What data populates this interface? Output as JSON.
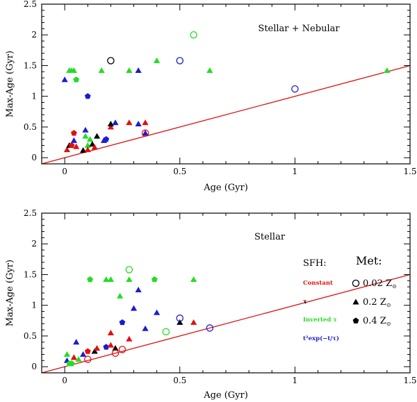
{
  "chart_data": [
    {
      "type": "scatter",
      "title": "Stellar + Nebular",
      "xlabel": "Age (Gyr)",
      "ylabel": "Max-Age (Gyr)",
      "xlim": [
        -0.1,
        1.5
      ],
      "ylim": [
        -0.1,
        2.5
      ],
      "xticks": [
        "0",
        "0.5",
        "1",
        "1.5"
      ],
      "yticks": [
        "0",
        "0.5",
        "1",
        "1.5",
        "2",
        "2.5"
      ],
      "one_to_one_line": true,
      "points": [
        {
          "x": 0.0,
          "y": 1.27,
          "color": "#1c1cd0",
          "marker": "triangle"
        },
        {
          "x": 0.02,
          "y": 1.42,
          "color": "#22dd22",
          "marker": "triangle"
        },
        {
          "x": 0.03,
          "y": 1.42,
          "color": "#22dd22",
          "marker": "triangle"
        },
        {
          "x": 0.04,
          "y": 1.42,
          "color": "#22dd22",
          "marker": "triangle"
        },
        {
          "x": 0.05,
          "y": 1.27,
          "color": "#22dd22",
          "marker": "pentagon"
        },
        {
          "x": 0.1,
          "y": 1.0,
          "color": "#1c1cd0",
          "marker": "pentagon"
        },
        {
          "x": 0.16,
          "y": 1.42,
          "color": "#22dd22",
          "marker": "triangle"
        },
        {
          "x": 0.2,
          "y": 1.58,
          "color": "#000000",
          "marker": "circle"
        },
        {
          "x": 0.28,
          "y": 1.42,
          "color": "#22dd22",
          "marker": "triangle"
        },
        {
          "x": 0.32,
          "y": 1.42,
          "color": "#1c1cd0",
          "marker": "triangle"
        },
        {
          "x": 0.4,
          "y": 1.58,
          "color": "#22dd22",
          "marker": "triangle"
        },
        {
          "x": 0.5,
          "y": 1.58,
          "color": "#1c1cd0",
          "marker": "circle"
        },
        {
          "x": 0.56,
          "y": 2.0,
          "color": "#22dd22",
          "marker": "circle"
        },
        {
          "x": 0.63,
          "y": 1.42,
          "color": "#22dd22",
          "marker": "triangle"
        },
        {
          "x": 1.0,
          "y": 1.12,
          "color": "#1c1cd0",
          "marker": "circle"
        },
        {
          "x": 1.4,
          "y": 1.42,
          "color": "#22dd22",
          "marker": "triangle"
        },
        {
          "x": 0.01,
          "y": 0.13,
          "color": "#e01010",
          "marker": "triangle"
        },
        {
          "x": 0.02,
          "y": 0.2,
          "color": "#000000",
          "marker": "triangle"
        },
        {
          "x": 0.03,
          "y": 0.2,
          "color": "#e01010",
          "marker": "pentagon"
        },
        {
          "x": 0.04,
          "y": 0.4,
          "color": "#e01010",
          "marker": "pentagon"
        },
        {
          "x": 0.04,
          "y": 0.28,
          "color": "#1c1cd0",
          "marker": "triangle"
        },
        {
          "x": 0.05,
          "y": 0.18,
          "color": "#e01010",
          "marker": "triangle"
        },
        {
          "x": 0.08,
          "y": 0.12,
          "color": "#000000",
          "marker": "triangle"
        },
        {
          "x": 0.09,
          "y": 0.45,
          "color": "#1c1cd0",
          "marker": "triangle"
        },
        {
          "x": 0.09,
          "y": 0.35,
          "color": "#22dd22",
          "marker": "triangle"
        },
        {
          "x": 0.1,
          "y": 0.2,
          "color": "#22dd22",
          "marker": "triangle"
        },
        {
          "x": 0.11,
          "y": 0.3,
          "color": "#22dd22",
          "marker": "triangle"
        },
        {
          "x": 0.1,
          "y": 0.13,
          "color": "#e01010",
          "marker": "triangle"
        },
        {
          "x": 0.12,
          "y": 0.22,
          "color": "#000000",
          "marker": "triangle"
        },
        {
          "x": 0.13,
          "y": 0.17,
          "color": "#e01010",
          "marker": "triangle"
        },
        {
          "x": 0.14,
          "y": 0.35,
          "color": "#000000",
          "marker": "triangle"
        },
        {
          "x": 0.17,
          "y": 0.28,
          "color": "#1c1cd0",
          "marker": "triangle"
        },
        {
          "x": 0.18,
          "y": 0.3,
          "color": "#1c1cd0",
          "marker": "pentagon"
        },
        {
          "x": 0.2,
          "y": 0.5,
          "color": "#e01010",
          "marker": "triangle"
        },
        {
          "x": 0.2,
          "y": 0.55,
          "color": "#000000",
          "marker": "triangle"
        },
        {
          "x": 0.22,
          "y": 0.57,
          "color": "#1c1cd0",
          "marker": "triangle"
        },
        {
          "x": 0.28,
          "y": 0.57,
          "color": "#e01010",
          "marker": "triangle"
        },
        {
          "x": 0.32,
          "y": 0.55,
          "color": "#1c1cd0",
          "marker": "triangle"
        },
        {
          "x": 0.35,
          "y": 0.57,
          "color": "#e01010",
          "marker": "triangle"
        },
        {
          "x": 0.35,
          "y": 0.4,
          "color": "#e01010",
          "marker": "circle"
        },
        {
          "x": 0.35,
          "y": 0.4,
          "color": "#1c1cd0",
          "marker": "triangle"
        }
      ]
    },
    {
      "type": "scatter",
      "title": "Stellar",
      "xlabel": "Age (Gyr)",
      "ylabel": "Max-Age (Gyr)",
      "xlim": [
        -0.1,
        1.5
      ],
      "ylim": [
        -0.1,
        2.5
      ],
      "xticks": [
        "0",
        "0.5",
        "1",
        "1.5"
      ],
      "yticks": [
        "0",
        "0.5",
        "1",
        "1.5",
        "2",
        "2.5"
      ],
      "one_to_one_line": true,
      "points": [
        {
          "x": 0.01,
          "y": 0.1,
          "color": "#1c1cd0",
          "marker": "triangle"
        },
        {
          "x": 0.01,
          "y": 0.2,
          "color": "#22dd22",
          "marker": "triangle"
        },
        {
          "x": 0.02,
          "y": 0.05,
          "color": "#22dd22",
          "marker": "pentagon"
        },
        {
          "x": 0.03,
          "y": 0.05,
          "color": "#22dd22",
          "marker": "pentagon"
        },
        {
          "x": 0.04,
          "y": 0.15,
          "color": "#e01010",
          "marker": "triangle"
        },
        {
          "x": 0.05,
          "y": 0.4,
          "color": "#1c1cd0",
          "marker": "triangle"
        },
        {
          "x": 0.06,
          "y": 0.12,
          "color": "#22dd22",
          "marker": "triangle"
        },
        {
          "x": 0.08,
          "y": 0.2,
          "color": "#1c1cd0",
          "marker": "triangle"
        },
        {
          "x": 0.1,
          "y": 0.25,
          "color": "#e01010",
          "marker": "pentagon"
        },
        {
          "x": 0.1,
          "y": 0.12,
          "color": "#e01010",
          "marker": "circle"
        },
        {
          "x": 0.13,
          "y": 0.25,
          "color": "#000000",
          "marker": "triangle"
        },
        {
          "x": 0.14,
          "y": 0.3,
          "color": "#e01010",
          "marker": "triangle"
        },
        {
          "x": 0.18,
          "y": 0.32,
          "color": "#1c1cd0",
          "marker": "pentagon"
        },
        {
          "x": 0.2,
          "y": 0.35,
          "color": "#e01010",
          "marker": "triangle"
        },
        {
          "x": 0.2,
          "y": 0.55,
          "color": "#e01010",
          "marker": "triangle"
        },
        {
          "x": 0.22,
          "y": 0.3,
          "color": "#000000",
          "marker": "triangle"
        },
        {
          "x": 0.22,
          "y": 0.22,
          "color": "#e01010",
          "marker": "circle"
        },
        {
          "x": 0.25,
          "y": 0.28,
          "color": "#e01010",
          "marker": "circle"
        },
        {
          "x": 0.25,
          "y": 0.72,
          "color": "#1c1cd0",
          "marker": "pentagon"
        },
        {
          "x": 0.28,
          "y": 0.45,
          "color": "#e01010",
          "marker": "triangle"
        },
        {
          "x": 0.3,
          "y": 0.95,
          "color": "#1c1cd0",
          "marker": "triangle"
        },
        {
          "x": 0.32,
          "y": 1.25,
          "color": "#1c1cd0",
          "marker": "triangle"
        },
        {
          "x": 0.35,
          "y": 0.62,
          "color": "#1c1cd0",
          "marker": "triangle"
        },
        {
          "x": 0.4,
          "y": 0.88,
          "color": "#1c1cd0",
          "marker": "triangle"
        },
        {
          "x": 0.44,
          "y": 0.57,
          "color": "#22dd22",
          "marker": "circle"
        },
        {
          "x": 0.5,
          "y": 0.72,
          "color": "#000000",
          "marker": "triangle"
        },
        {
          "x": 0.5,
          "y": 0.79,
          "color": "#1c1cd0",
          "marker": "circle"
        },
        {
          "x": 0.56,
          "y": 0.72,
          "color": "#e01010",
          "marker": "triangle"
        },
        {
          "x": 0.63,
          "y": 0.63,
          "color": "#1c1cd0",
          "marker": "circle"
        },
        {
          "x": 0.11,
          "y": 1.42,
          "color": "#22dd22",
          "marker": "pentagon"
        },
        {
          "x": 0.18,
          "y": 1.42,
          "color": "#22dd22",
          "marker": "triangle"
        },
        {
          "x": 0.2,
          "y": 1.42,
          "color": "#22dd22",
          "marker": "triangle"
        },
        {
          "x": 0.24,
          "y": 1.15,
          "color": "#22dd22",
          "marker": "triangle"
        },
        {
          "x": 0.28,
          "y": 1.58,
          "color": "#22dd22",
          "marker": "circle"
        },
        {
          "x": 0.28,
          "y": 1.42,
          "color": "#22dd22",
          "marker": "triangle"
        },
        {
          "x": 0.39,
          "y": 1.42,
          "color": "#22dd22",
          "marker": "pentagon"
        },
        {
          "x": 0.56,
          "y": 1.42,
          "color": "#22dd22",
          "marker": "triangle"
        }
      ],
      "legend": {
        "sfh_title": "SFH:",
        "met_title": "Met:",
        "sfh": [
          {
            "label": "Constant",
            "color": "#e01010"
          },
          {
            "label": "τ",
            "color": "#000000"
          },
          {
            "label": "Inverted τ",
            "color": "#22dd22"
          },
          {
            "label": "t²exp(−t/τ)",
            "color": "#1c1cd0"
          }
        ],
        "met": [
          {
            "marker": "circle",
            "label": "0.02 Z",
            "sub": "⊙"
          },
          {
            "marker": "triangle",
            "label": "0.2 Z",
            "sub": "⊙"
          },
          {
            "marker": "pentagon",
            "label": "0.4 Z",
            "sub": "⊙"
          }
        ]
      }
    }
  ]
}
